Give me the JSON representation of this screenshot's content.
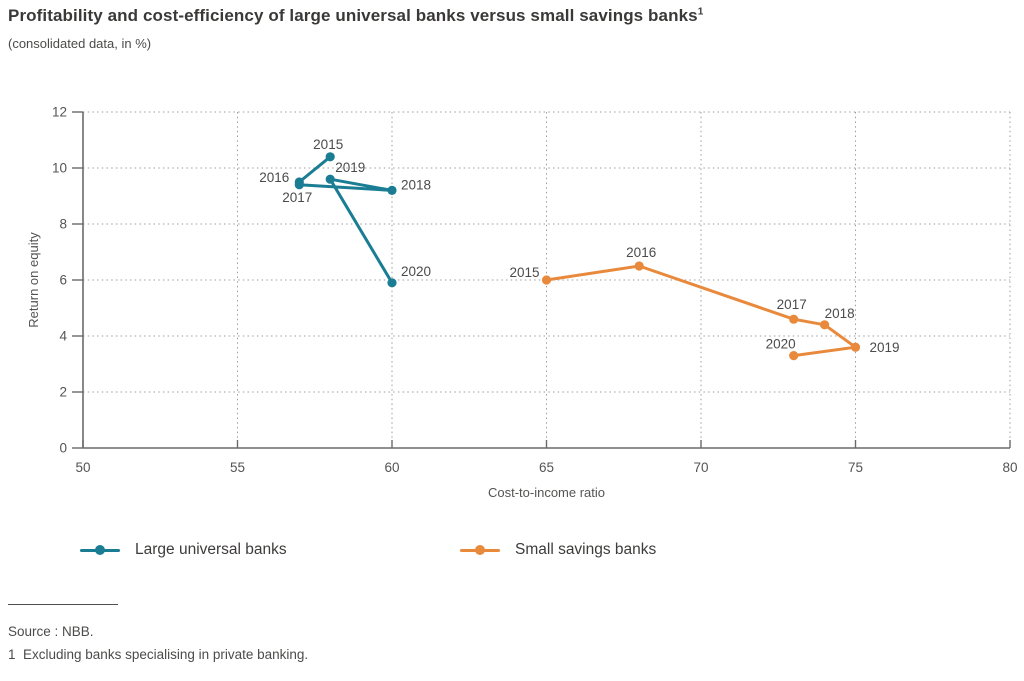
{
  "header": {
    "title": "Profitability and cost-efficiency of large universal banks versus small savings banks",
    "title_superscript": "1",
    "subtitle": "(consolidated data, in %)"
  },
  "chart_data": {
    "type": "scatter",
    "title": "Profitability and cost-efficiency of large universal banks versus small savings banks",
    "xlabel": "Cost-to-income ratio",
    "ylabel": "Return on equity",
    "xlim": [
      50,
      80
    ],
    "ylim": [
      0,
      12
    ],
    "x_ticks": [
      50,
      55,
      60,
      65,
      70,
      75,
      80
    ],
    "y_ticks": [
      0,
      2,
      4,
      6,
      8,
      10,
      12
    ],
    "grid": "dotted",
    "legend_position": "bottom",
    "series": [
      {
        "name": "Large universal banks",
        "color": "#1b7d93",
        "points": [
          {
            "year": "2015",
            "x": 58,
            "y": 10.4,
            "label": {
              "dx": -2,
              "dy": -8,
              "anchor": "middle"
            }
          },
          {
            "year": "2016",
            "x": 57,
            "y": 9.5,
            "label": {
              "dx": -10,
              "dy": 0,
              "anchor": "end"
            }
          },
          {
            "year": "2017",
            "x": 57,
            "y": 9.4,
            "label": {
              "dx": 13,
              "dy": 17,
              "anchor": "end"
            }
          },
          {
            "year": "2018",
            "x": 60,
            "y": 9.2,
            "label": {
              "dx": 9,
              "dy": -1,
              "anchor": "start"
            }
          },
          {
            "year": "2019",
            "x": 58,
            "y": 9.6,
            "label": {
              "dx": 5,
              "dy": -7,
              "anchor": "start"
            }
          },
          {
            "year": "2020",
            "x": 60,
            "y": 5.9,
            "label": {
              "dx": 9,
              "dy": -7,
              "anchor": "start"
            }
          }
        ]
      },
      {
        "name": "Small savings banks",
        "color": "#e8893c",
        "points": [
          {
            "year": "2015",
            "x": 65,
            "y": 6.0,
            "label": {
              "dx": -7,
              "dy": -3,
              "anchor": "end"
            }
          },
          {
            "year": "2016",
            "x": 68,
            "y": 6.5,
            "label": {
              "dx": 2,
              "dy": -9,
              "anchor": "middle"
            }
          },
          {
            "year": "2017",
            "x": 73,
            "y": 4.6,
            "label": {
              "dx": -2,
              "dy": -10,
              "anchor": "middle"
            }
          },
          {
            "year": "2018",
            "x": 74,
            "y": 4.4,
            "label": {
              "dx": 0,
              "dy": -7,
              "anchor": "start"
            }
          },
          {
            "year": "2019",
            "x": 75,
            "y": 3.6,
            "label": {
              "dx": 14,
              "dy": 5,
              "anchor": "start"
            }
          },
          {
            "year": "2020",
            "x": 73,
            "y": 3.3,
            "label": {
              "dx": 2,
              "dy": -7,
              "anchor": "end"
            }
          }
        ]
      }
    ]
  },
  "legend": [
    {
      "label": "Large universal banks",
      "color": "#1b7d93"
    },
    {
      "label": "Small savings banks",
      "color": "#e8893c"
    }
  ],
  "footer": {
    "source": "Source : NBB.",
    "note": "1  Excluding banks specialising in private banking."
  },
  "style_colors": {
    "axis": "#6a6a6a",
    "grid": "#9d9d9d",
    "tick_label": "#555453",
    "year_label": "#4c4b4a"
  }
}
